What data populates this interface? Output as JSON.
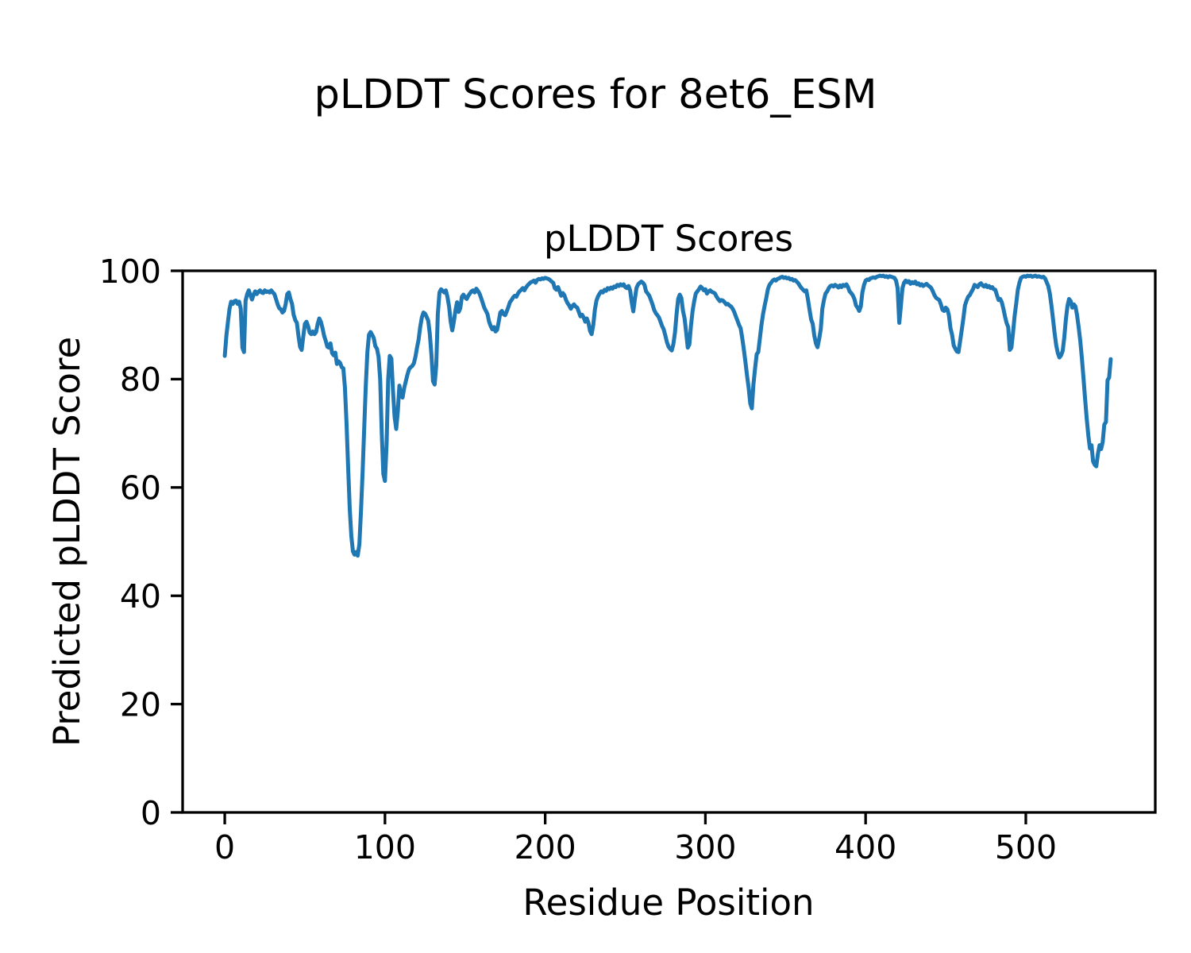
{
  "figure": {
    "suptitle": "pLDDT Scores for 8et6_ESM"
  },
  "chart_data": {
    "type": "line",
    "title": "pLDDT Scores",
    "xlabel": "Residue Position",
    "ylabel": "Predicted pLDDT Score",
    "xlim": [
      -26.3,
      580.8
    ],
    "ylim": [
      0,
      100
    ],
    "xticks": [
      0,
      100,
      200,
      300,
      400,
      500
    ],
    "yticks": [
      0,
      20,
      40,
      60,
      80,
      100
    ],
    "grid": false,
    "legend": null,
    "line_color": "#1f77b4",
    "axis_color": "#000000",
    "background": "#ffffff",
    "series": [
      {
        "name": "pLDDT",
        "x_start": 0,
        "x_step": 1,
        "values": [
          84.3,
          88.0,
          90.6,
          93.0,
          94.3,
          93.9,
          94.4,
          94.5,
          93.9,
          94.3,
          93.0,
          85.8,
          85.0,
          94.5,
          95.7,
          96.4,
          95.5,
          94.7,
          95.6,
          96.2,
          95.7,
          96.1,
          96.4,
          96.0,
          95.9,
          96.4,
          96.1,
          96.2,
          96.0,
          96.4,
          96.0,
          95.7,
          94.8,
          93.8,
          93.1,
          92.9,
          92.3,
          92.6,
          93.8,
          95.7,
          96.0,
          94.8,
          93.9,
          91.9,
          90.9,
          90.4,
          88.0,
          86.0,
          85.4,
          87.8,
          90.2,
          90.6,
          89.8,
          88.6,
          88.3,
          88.8,
          88.3,
          88.7,
          90.2,
          91.2,
          90.6,
          89.4,
          88.0,
          87.1,
          86.0,
          85.8,
          86.6,
          84.8,
          84.4,
          84.9,
          82.8,
          83.3,
          83.0,
          82.2,
          82.0,
          78.5,
          72.0,
          64.0,
          56.0,
          51.0,
          48.2,
          47.6,
          48.1,
          47.4,
          49.5,
          55.5,
          62.5,
          70.5,
          78.5,
          85.0,
          88.2,
          88.7,
          88.2,
          87.6,
          86.1,
          85.6,
          84.1,
          80.0,
          70.0,
          62.5,
          61.2,
          68.0,
          80.0,
          84.3,
          83.8,
          78.0,
          73.0,
          70.8,
          74.0,
          78.8,
          77.2,
          76.6,
          78.4,
          79.6,
          80.8,
          81.8,
          82.2,
          82.4,
          82.9,
          84.1,
          85.8,
          87.3,
          89.6,
          91.4,
          92.3,
          92.1,
          91.5,
          90.8,
          88.4,
          84.4,
          79.6,
          79.0,
          82.5,
          92.0,
          96.0,
          96.6,
          96.3,
          96.0,
          96.4,
          95.2,
          93.4,
          90.6,
          89.0,
          90.6,
          92.7,
          94.2,
          92.4,
          93.1,
          95.2,
          95.6,
          95.1,
          94.8,
          95.4,
          95.8,
          96.2,
          96.4,
          96.0,
          96.7,
          96.3,
          95.8,
          95.0,
          94.1,
          93.2,
          92.6,
          92.0,
          90.6,
          89.8,
          89.2,
          89.6,
          88.8,
          89.1,
          90.6,
          92.3,
          92.6,
          92.0,
          91.8,
          92.5,
          93.3,
          94.2,
          94.6,
          95.1,
          95.4,
          95.2,
          95.8,
          96.2,
          96.5,
          96.8,
          96.4,
          96.9,
          97.3,
          97.6,
          97.9,
          98.0,
          98.2,
          97.8,
          98.3,
          98.5,
          98.4,
          98.6,
          98.5,
          98.7,
          98.6,
          98.5,
          98.3,
          98.0,
          97.8,
          96.8,
          96.5,
          97.0,
          96.2,
          95.4,
          95.9,
          95.5,
          94.6,
          94.0,
          93.6,
          93.0,
          93.5,
          93.8,
          93.4,
          93.2,
          92.4,
          91.6,
          91.9,
          91.4,
          90.6,
          91.2,
          90.4,
          88.9,
          88.3,
          90.0,
          92.8,
          94.5,
          95.3,
          95.8,
          96.2,
          96.0,
          96.5,
          96.3,
          96.8,
          96.6,
          96.9,
          96.7,
          97.1,
          97.0,
          97.4,
          97.2,
          97.5,
          97.3,
          97.5,
          97.0,
          96.8,
          97.2,
          96.4,
          94.2,
          92.5,
          94.8,
          96.8,
          97.5,
          97.8,
          98.0,
          97.8,
          97.4,
          96.2,
          95.8,
          95.4,
          94.6,
          93.8,
          92.8,
          92.2,
          91.8,
          91.4,
          90.6,
          89.8,
          89.2,
          88.0,
          86.8,
          86.0,
          85.6,
          85.3,
          86.4,
          88.6,
          92.0,
          94.8,
          95.6,
          95.0,
          92.6,
          91.2,
          88.6,
          85.8,
          86.4,
          89.8,
          92.6,
          94.4,
          95.8,
          96.2,
          96.6,
          97.1,
          96.8,
          96.4,
          96.6,
          95.8,
          96.2,
          96.4,
          96.1,
          96.0,
          95.8,
          95.2,
          94.8,
          94.4,
          94.6,
          94.5,
          94.2,
          93.8,
          93.9,
          93.6,
          93.4,
          93.0,
          92.4,
          91.6,
          90.8,
          90.0,
          89.4,
          87.6,
          85.5,
          83.2,
          80.6,
          78.4,
          75.5,
          74.6,
          79.0,
          82.0,
          84.6,
          85.0,
          87.5,
          90.0,
          92.0,
          93.6,
          95.0,
          96.6,
          97.4,
          97.8,
          98.2,
          98.4,
          98.2,
          98.5,
          98.6,
          98.8,
          98.9,
          98.7,
          98.8,
          98.6,
          98.7,
          98.4,
          98.5,
          98.2,
          98.3,
          98.0,
          97.7,
          97.2,
          96.8,
          96.5,
          96.2,
          96.4,
          94.8,
          92.8,
          91.0,
          90.2,
          88.0,
          86.6,
          85.9,
          87.4,
          89.2,
          93.0,
          94.6,
          95.8,
          96.2,
          96.8,
          97.2,
          97.3,
          97.1,
          97.4,
          97.2,
          96.9,
          97.3,
          97.0,
          97.4,
          97.2,
          97.5,
          97.0,
          96.2,
          95.9,
          95.5,
          94.8,
          93.6,
          93.2,
          92.6,
          93.4,
          96.0,
          97.4,
          98.2,
          98.4,
          98.3,
          98.6,
          98.7,
          98.8,
          98.7,
          98.9,
          99.0,
          99.1,
          99.0,
          99.1,
          98.9,
          99.0,
          98.8,
          99.0,
          98.9,
          98.8,
          98.7,
          98.2,
          96.8,
          90.4,
          93.5,
          96.8,
          97.8,
          98.2,
          97.9,
          98.1,
          97.6,
          97.9,
          97.7,
          98.0,
          97.5,
          97.7,
          97.3,
          97.5,
          97.2,
          97.4,
          97.6,
          97.3,
          97.1,
          96.8,
          96.2,
          95.5,
          95.0,
          94.8,
          94.6,
          93.8,
          92.8,
          92.6,
          93.2,
          92.9,
          91.8,
          89.4,
          88.2,
          86.2,
          85.6,
          85.1,
          85.0,
          87.0,
          89.1,
          91.2,
          93.6,
          94.5,
          95.2,
          95.5,
          96.1,
          96.6,
          97.4,
          97.2,
          97.0,
          97.5,
          97.7,
          97.3,
          97.1,
          97.4,
          97.0,
          97.2,
          96.8,
          97.0,
          96.6,
          96.5,
          95.5,
          94.6,
          94.8,
          94.2,
          93.0,
          91.6,
          90.4,
          89.6,
          85.4,
          85.8,
          88.5,
          91.6,
          94.0,
          96.5,
          97.8,
          98.7,
          98.9,
          99.0,
          98.9,
          99.1,
          99.0,
          99.1,
          98.9,
          99.0,
          99.1,
          98.9,
          99.0,
          98.9,
          98.8,
          98.9,
          98.6,
          97.9,
          97.2,
          95.8,
          93.6,
          91.0,
          88.4,
          86.2,
          84.8,
          84.0,
          84.4,
          85.2,
          87.7,
          91.0,
          93.5,
          94.8,
          94.4,
          93.2,
          93.8,
          93.4,
          91.8,
          89.6,
          87.0,
          83.8,
          80.2,
          76.4,
          72.8,
          69.6,
          67.2,
          67.8,
          64.8,
          64.2,
          63.9,
          66.2,
          67.8,
          67.1,
          68.4,
          71.6,
          72.1,
          79.8,
          80.3,
          83.7
        ]
      }
    ]
  }
}
